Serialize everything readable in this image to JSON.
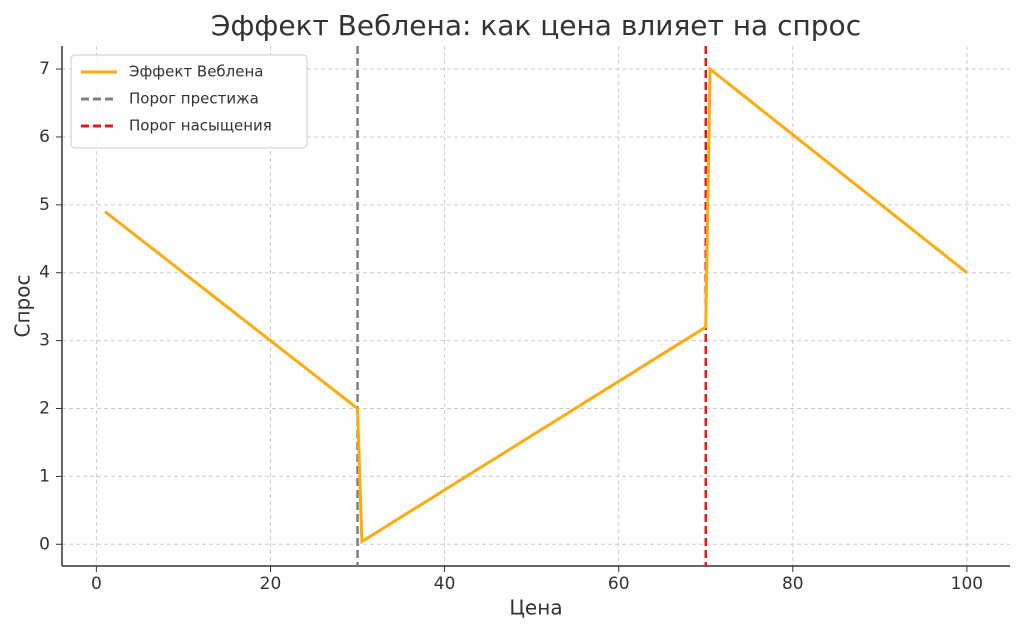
{
  "chart_data": {
    "type": "line",
    "title": "Эффект Веблена: как цена влияет на спрос",
    "x_label": "Цена",
    "y_label": "Спрос",
    "series": [
      {
        "name": "Эффект Веблена",
        "color": "#ffab0f",
        "x": [
          1,
          30,
          30.5,
          70,
          70.5,
          100
        ],
        "values": [
          4.9,
          2.0,
          0.04,
          3.2,
          7.0,
          4.0
        ]
      }
    ],
    "vlines": [
      {
        "name": "Порог престижа",
        "color": "#808080",
        "x": 30
      },
      {
        "name": "Порог насыщения",
        "color": "#e31a1c",
        "x": 70
      }
    ],
    "xlim": [
      -3.95,
      104.95
    ],
    "ylim": [
      -0.32,
      7.34
    ],
    "xticks": [
      0,
      20,
      40,
      60,
      80,
      100
    ],
    "yticks": [
      0,
      1,
      2,
      3,
      4,
      5,
      6,
      7
    ],
    "grid": true,
    "legend": "upper left"
  }
}
